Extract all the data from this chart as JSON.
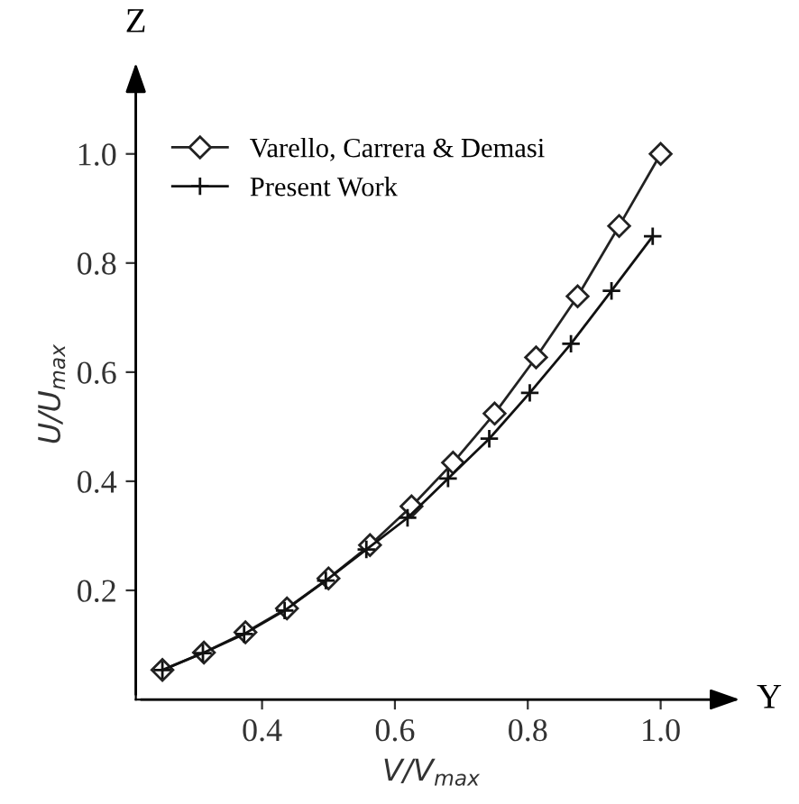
{
  "chart_data": {
    "type": "line",
    "xlabel": "V/V$_{max}$",
    "ylabel": "U/U$_{max}$",
    "annotations": [
      "Z",
      "Y"
    ],
    "xlim": [
      0.21,
      1.1
    ],
    "ylim": [
      0.0,
      1.12
    ],
    "xticks": [
      0.4,
      0.6,
      0.8,
      {
        "value": 1.0,
        "label": "1.0"
      }
    ],
    "yticks": [
      0.2,
      0.4,
      0.6,
      0.8,
      {
        "value": 1.0,
        "label": "1.0"
      }
    ],
    "grid": false,
    "legend": "top left",
    "line_style": "solid",
    "series": [
      {
        "name": "Varello, Carrera & Demasi",
        "color": "#222222",
        "marker": "diamond",
        "x": [
          0.25,
          0.3125,
          0.375,
          0.4375,
          0.5,
          0.5625,
          0.625,
          0.6875,
          0.75,
          0.8125,
          0.875,
          0.9375,
          1.0
        ],
        "values": [
          0.054,
          0.086,
          0.123,
          0.167,
          0.222,
          0.283,
          0.354,
          0.434,
          0.524,
          0.627,
          0.739,
          0.868,
          1.0
        ]
      },
      {
        "name": "Present Work",
        "color": "#111111",
        "marker": "cross",
        "x": [
          0.25,
          0.311,
          0.373,
          0.434,
          0.496,
          0.557,
          0.619,
          0.68,
          0.742,
          0.803,
          0.865,
          0.926,
          0.988
        ],
        "values": [
          0.054,
          0.085,
          0.12,
          0.163,
          0.218,
          0.275,
          0.333,
          0.405,
          0.478,
          0.562,
          0.652,
          0.749,
          0.849
        ]
      }
    ]
  }
}
